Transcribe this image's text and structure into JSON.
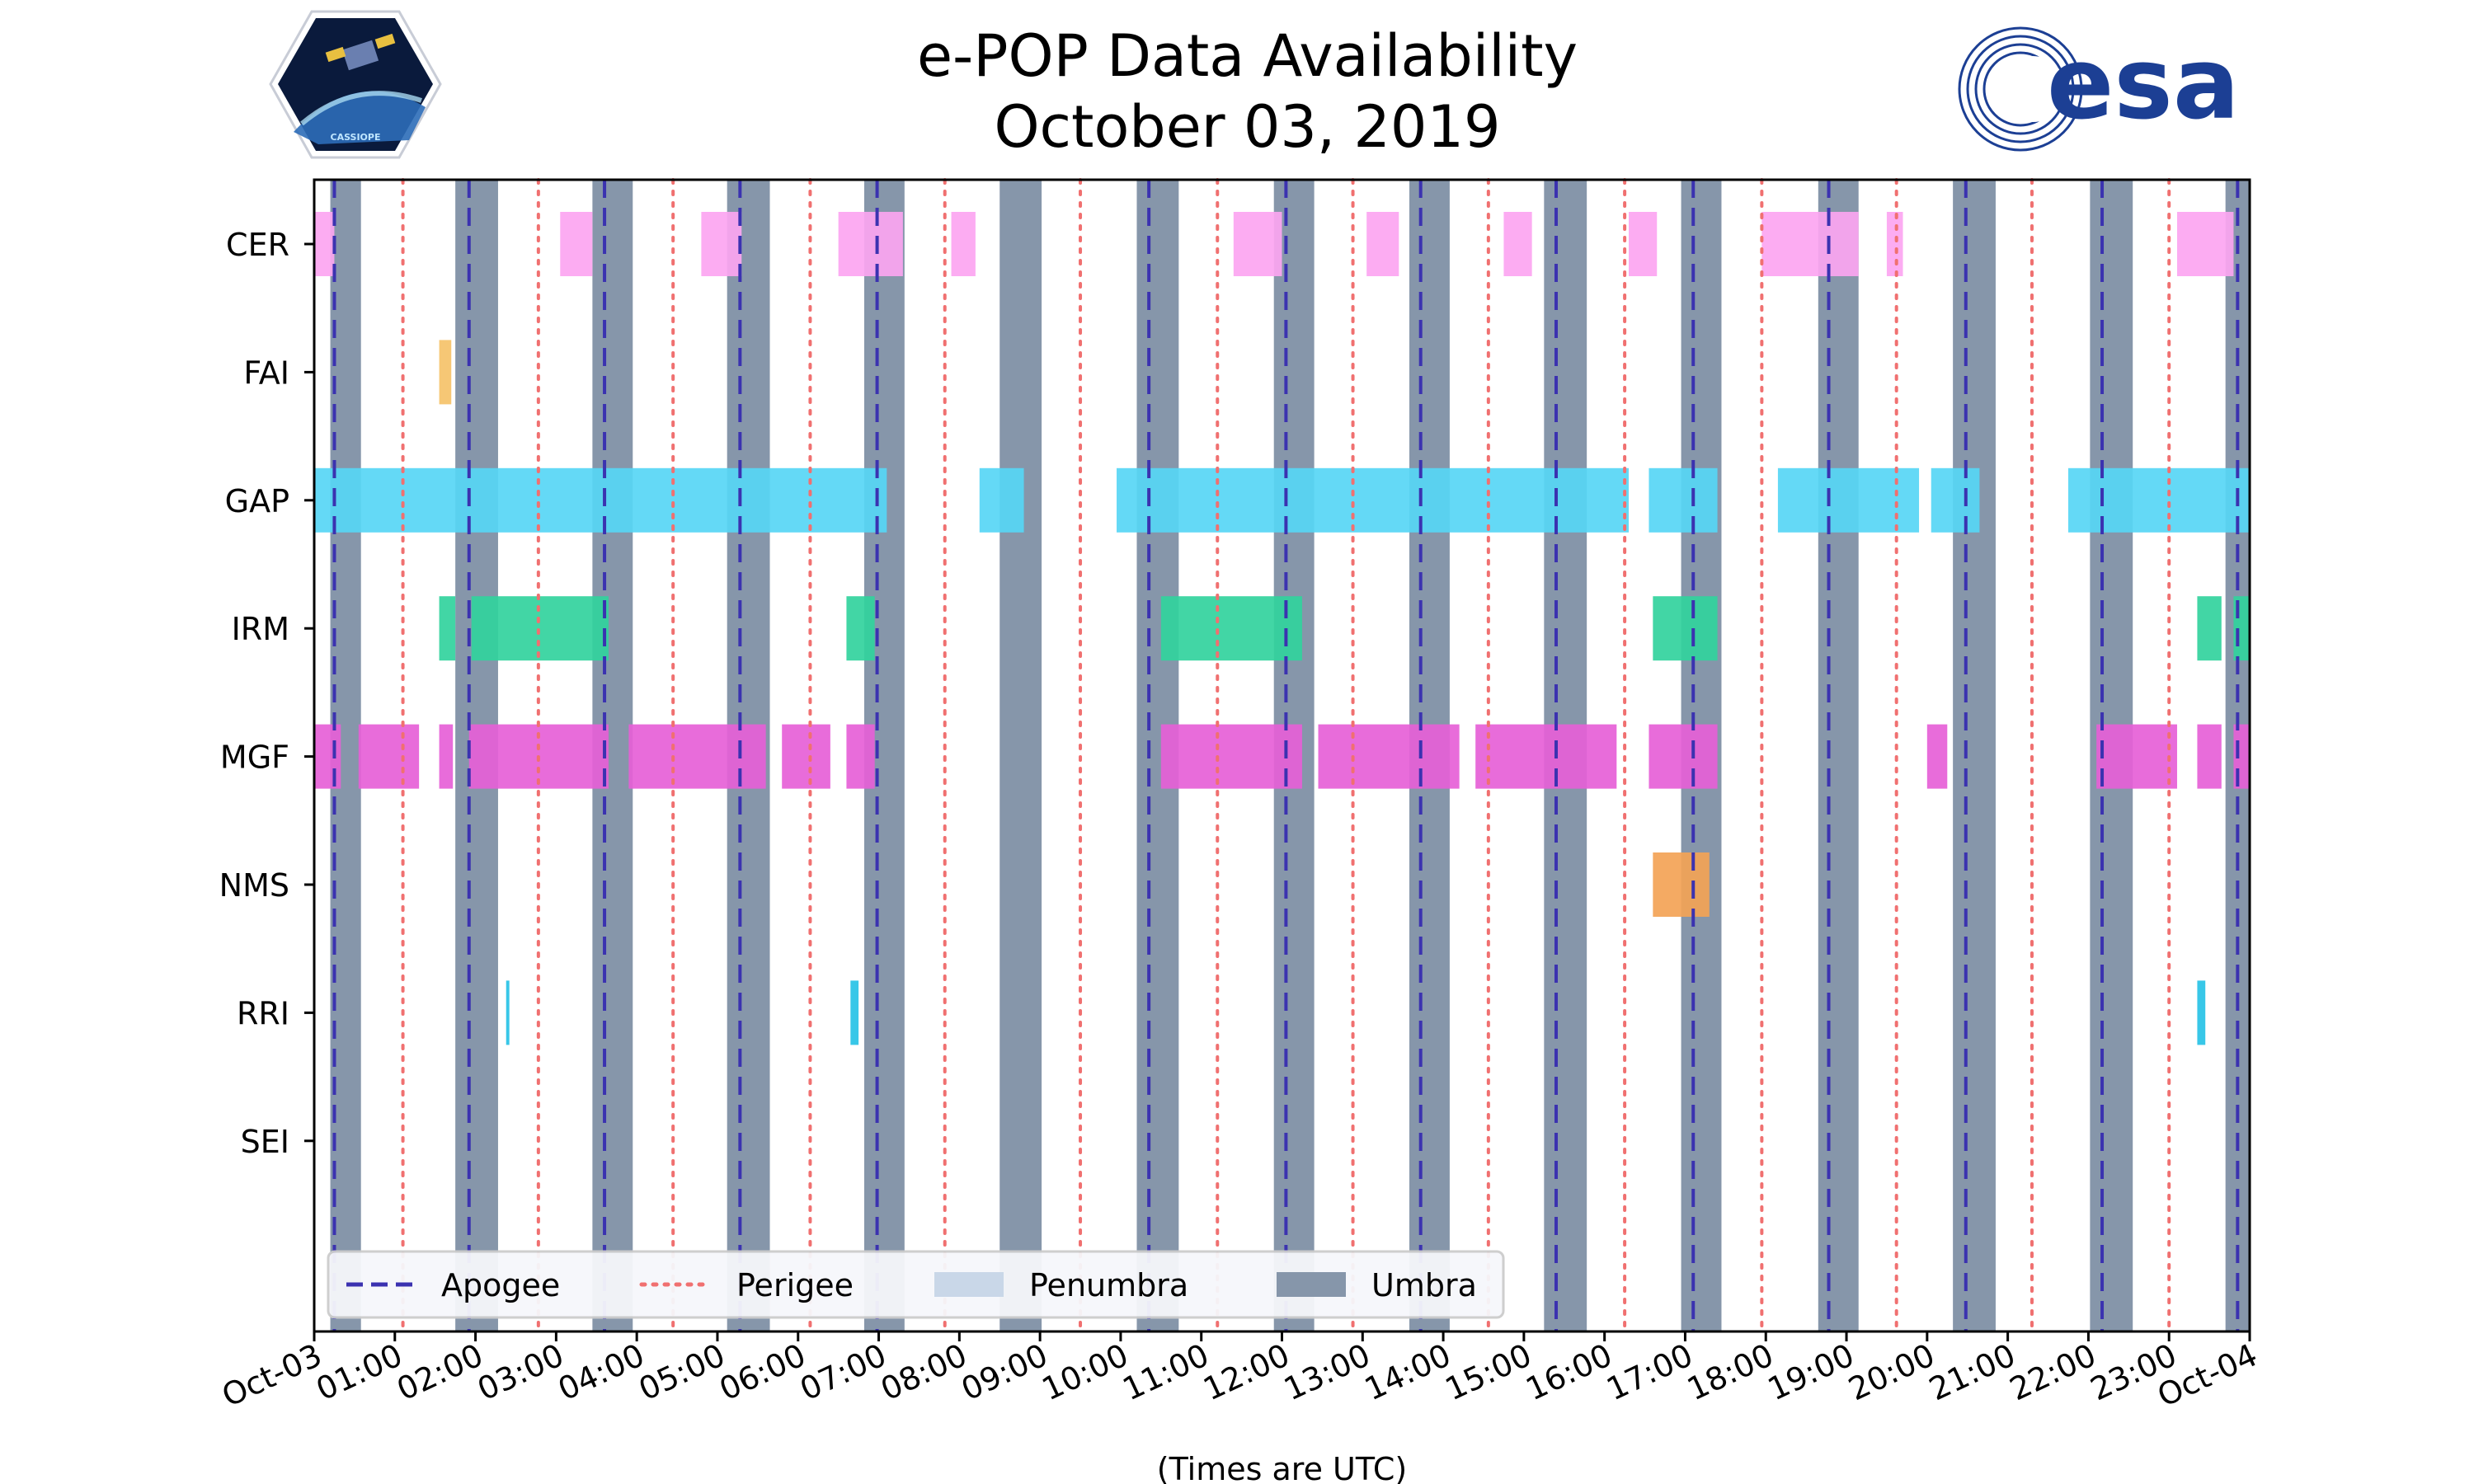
{
  "title_lines": [
    "e-POP Data Availability",
    "October 03, 2019"
  ],
  "logos": {
    "left": {
      "name": "cassiope-mission-logo",
      "text": "CASSIOPE"
    },
    "right": {
      "name": "esa-logo",
      "text": "esa"
    }
  },
  "colors": {
    "apogee": "#3b32b0",
    "perigee": "#f07070",
    "penumbra": "#c9d7e8",
    "umbra": "#8696aa",
    "CER": "#fca5f1",
    "FAI": "#f5c269",
    "GAP": "#57d6f5",
    "IRM": "#32d39d",
    "MGF": "#e65fd7",
    "NMS": "#f3a356",
    "RRI": "#27c2e6"
  },
  "chart_data": {
    "type": "timeline",
    "title": "e-POP Data Availability October 03, 2019",
    "xlabel": "(Times are UTC)",
    "x_range_hours": [
      0,
      24
    ],
    "x_tick_labels": [
      "Oct-03",
      "01:00",
      "02:00",
      "03:00",
      "04:00",
      "05:00",
      "06:00",
      "07:00",
      "08:00",
      "09:00",
      "10:00",
      "11:00",
      "12:00",
      "13:00",
      "14:00",
      "15:00",
      "16:00",
      "17:00",
      "18:00",
      "19:00",
      "20:00",
      "21:00",
      "22:00",
      "23:00",
      "Oct-04"
    ],
    "instruments": [
      "CER",
      "FAI",
      "GAP",
      "IRM",
      "MGF",
      "NMS",
      "RRI",
      "SEI"
    ],
    "availability": {
      "CER": [
        [
          0.0,
          0.25
        ],
        [
          3.05,
          3.45
        ],
        [
          4.8,
          5.3
        ],
        [
          6.5,
          7.3
        ],
        [
          7.9,
          8.2
        ],
        [
          11.4,
          12.0
        ],
        [
          13.05,
          13.45
        ],
        [
          14.75,
          15.1
        ],
        [
          16.3,
          16.65
        ],
        [
          17.95,
          19.15
        ],
        [
          19.5,
          19.7
        ],
        [
          23.1,
          23.8
        ]
      ],
      "FAI": [
        [
          1.55,
          1.7
        ]
      ],
      "GAP": [
        [
          0.0,
          7.1
        ],
        [
          8.25,
          8.8
        ],
        [
          9.95,
          16.3
        ],
        [
          16.55,
          17.4
        ],
        [
          18.15,
          19.9
        ],
        [
          20.05,
          20.65
        ],
        [
          21.75,
          24.0
        ]
      ],
      "IRM": [
        [
          1.55,
          1.75
        ],
        [
          1.95,
          3.65
        ],
        [
          6.6,
          6.95
        ],
        [
          10.5,
          12.25
        ],
        [
          16.6,
          17.4
        ],
        [
          23.35,
          23.65
        ],
        [
          23.8,
          24.0
        ]
      ],
      "MGF": [
        [
          0.0,
          0.33
        ],
        [
          0.55,
          1.3
        ],
        [
          1.55,
          1.72
        ],
        [
          1.92,
          3.65
        ],
        [
          3.9,
          5.6
        ],
        [
          5.8,
          6.4
        ],
        [
          6.6,
          6.95
        ],
        [
          10.5,
          12.25
        ],
        [
          12.45,
          14.2
        ],
        [
          14.4,
          16.15
        ],
        [
          16.55,
          17.4
        ],
        [
          20.0,
          20.25
        ],
        [
          22.1,
          23.1
        ],
        [
          23.35,
          23.65
        ],
        [
          23.8,
          24.0
        ]
      ],
      "NMS": [
        [
          16.6,
          17.3
        ]
      ],
      "RRI": [
        [
          2.38,
          2.42
        ],
        [
          6.65,
          6.75
        ],
        [
          23.35,
          23.45
        ]
      ],
      "SEI": []
    },
    "apogee_hours": [
      0.25,
      1.92,
      3.6,
      5.28,
      6.98,
      10.35,
      12.05,
      13.72,
      15.4,
      17.1,
      18.78,
      20.48,
      22.17,
      23.85
    ],
    "perigee_hours": [
      1.1,
      2.78,
      4.45,
      6.15,
      7.82,
      9.5,
      11.2,
      12.88,
      14.56,
      16.25,
      17.95,
      19.62,
      21.3,
      23.0
    ],
    "umbra_intervals": [
      [
        0.2,
        0.58
      ],
      [
        1.75,
        2.28
      ],
      [
        3.45,
        3.95
      ],
      [
        5.12,
        5.65
      ],
      [
        6.82,
        7.32
      ],
      [
        8.5,
        9.02
      ],
      [
        10.2,
        10.72
      ],
      [
        11.9,
        12.4
      ],
      [
        13.58,
        14.08
      ],
      [
        15.25,
        15.78
      ],
      [
        16.95,
        17.45
      ],
      [
        18.65,
        19.15
      ],
      [
        20.32,
        20.85
      ],
      [
        22.02,
        22.55
      ],
      [
        23.7,
        24.0
      ]
    ],
    "penumbra_intervals": [],
    "legend": {
      "placement": "bottom-left",
      "entries": [
        "Apogee",
        "Perigee",
        "Penumbra",
        "Umbra"
      ]
    }
  }
}
